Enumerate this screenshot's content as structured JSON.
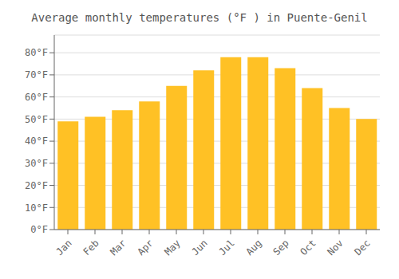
{
  "chart_data": {
    "type": "bar",
    "title": "Average monthly temperatures (°F ) in Puente-Genil",
    "categories": [
      "Jan",
      "Feb",
      "Mar",
      "Apr",
      "May",
      "Jun",
      "Jul",
      "Aug",
      "Sep",
      "Oct",
      "Nov",
      "Dec"
    ],
    "values": [
      49,
      51,
      54,
      58,
      65,
      72,
      78,
      78,
      73,
      64,
      55,
      50
    ],
    "color": "#FFC125",
    "ylim": [
      0,
      88
    ],
    "yticks": [
      {
        "value": 0,
        "label": "0°F"
      },
      {
        "value": 10,
        "label": "10°F"
      },
      {
        "value": 20,
        "label": "20°F"
      },
      {
        "value": 30,
        "label": "30°F"
      },
      {
        "value": 40,
        "label": "40°F"
      },
      {
        "value": 50,
        "label": "50°F"
      },
      {
        "value": 60,
        "label": "60°F"
      },
      {
        "value": 70,
        "label": "70°F"
      },
      {
        "value": 80,
        "label": "80°F"
      }
    ],
    "grid": true
  }
}
